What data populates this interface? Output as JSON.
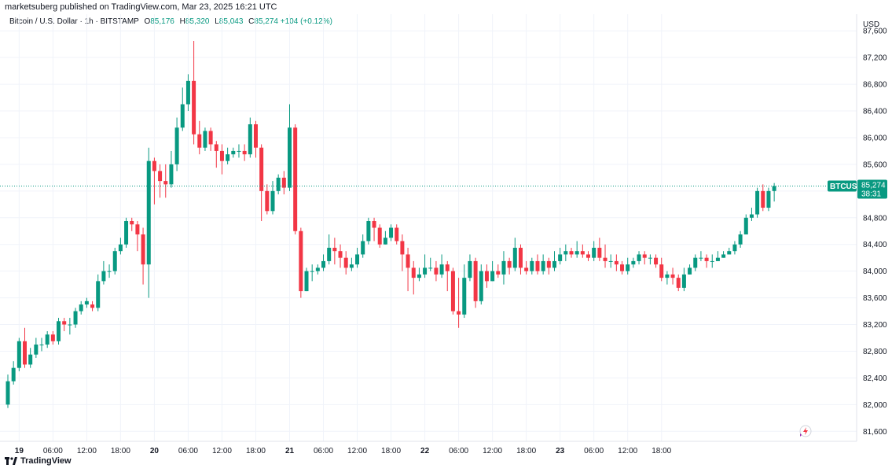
{
  "header": {
    "credit": "marketsuberg published on TradingView.com, Mar 23, 2025 16:21 UTC"
  },
  "legend": {
    "symbol": "Bitcoin / U.S. Dollar · 1h · BITSTAMP",
    "o_label": "O",
    "o_value": "85,176",
    "h_label": "H",
    "h_value": "85,320",
    "l_label": "L",
    "l_value": "85,043",
    "c_label": "C",
    "c_value": "85,274",
    "change": "+104 (+0.12%)"
  },
  "currency": "USD",
  "price_tag": {
    "ticker": "BTCUSD",
    "price": "85,274",
    "countdown": "38:31"
  },
  "footer": {
    "brand": "TradingView"
  },
  "colors": {
    "up": "#089981",
    "down": "#f23645",
    "grid": "#f0f3fa",
    "last_line": "#089981"
  },
  "chart_data": {
    "type": "candlestick",
    "y_ticks": [
      "81,600",
      "82,000",
      "82,400",
      "82,800",
      "83,200",
      "83,600",
      "84,000",
      "84,400",
      "84,800",
      "85,200",
      "85,600",
      "86,000",
      "86,400",
      "86,800",
      "87,200",
      "87,600"
    ],
    "y_tick_values": [
      81600,
      82000,
      82400,
      82800,
      83200,
      83600,
      84000,
      84400,
      84800,
      85200,
      85600,
      86000,
      86400,
      86800,
      87200,
      87600
    ],
    "ylim": [
      81450,
      87850
    ],
    "x_ticks": [
      "19",
      "06:00",
      "12:00",
      "18:00",
      "20",
      "06:00",
      "12:00",
      "18:00",
      "21",
      "06:00",
      "12:00",
      "18:00",
      "22",
      "06:00",
      "12:00",
      "18:00",
      "23",
      "06:00",
      "12:00",
      "18:00"
    ],
    "x_tick_hours": [
      2,
      8,
      14,
      20,
      26,
      32,
      38,
      44,
      50,
      56,
      62,
      68,
      74,
      80,
      86,
      92,
      98,
      104,
      110,
      116
    ],
    "x_tick_bold": [
      true,
      false,
      false,
      false,
      true,
      false,
      false,
      false,
      true,
      false,
      false,
      false,
      true,
      false,
      false,
      false,
      true,
      false,
      false,
      false
    ],
    "last_price": 85274,
    "candles": [
      [
        82000,
        82350,
        81950,
        82450
      ],
      [
        82350,
        82550,
        82300,
        82650
      ],
      [
        82550,
        82950,
        82500,
        83000
      ],
      [
        82950,
        82600,
        82550,
        83150
      ],
      [
        82600,
        82750,
        82550,
        82850
      ],
      [
        82750,
        82900,
        82700,
        83000
      ],
      [
        82900,
        82900,
        82800,
        83000
      ],
      [
        82900,
        83050,
        82850,
        83100
      ],
      [
        83050,
        82950,
        82900,
        83100
      ],
      [
        82950,
        83250,
        82900,
        83300
      ],
      [
        83250,
        83200,
        83100,
        83300
      ],
      [
        83200,
        83200,
        83050,
        83300
      ],
      [
        83200,
        83400,
        83150,
        83450
      ],
      [
        83400,
        83500,
        83350,
        83550
      ],
      [
        83500,
        83550,
        83450,
        83600
      ],
      [
        83500,
        83450,
        83400,
        83550
      ],
      [
        83450,
        83850,
        83400,
        83950
      ],
      [
        83850,
        84000,
        83800,
        84150
      ],
      [
        84000,
        84000,
        83900,
        84100
      ],
      [
        84000,
        84300,
        83950,
        84350
      ],
      [
        84300,
        84400,
        84250,
        84500
      ],
      [
        84400,
        84750,
        84350,
        84800
      ],
      [
        84750,
        84700,
        84600,
        84800
      ],
      [
        84700,
        84550,
        84300,
        84750
      ],
      [
        84550,
        84100,
        83800,
        84650
      ],
      [
        84100,
        85650,
        83600,
        85850
      ],
      [
        85650,
        85500,
        85000,
        85700
      ],
      [
        85500,
        85350,
        85100,
        85600
      ],
      [
        85350,
        85300,
        85100,
        85600
      ],
      [
        85300,
        85600,
        85250,
        85800
      ],
      [
        85600,
        86150,
        85500,
        86300
      ],
      [
        86150,
        86500,
        86100,
        86750
      ],
      [
        86500,
        86850,
        86400,
        86950
      ],
      [
        86850,
        86050,
        85900,
        87450
      ],
      [
        86050,
        85850,
        85750,
        86250
      ],
      [
        85850,
        86100,
        85800,
        86150
      ],
      [
        86100,
        85900,
        85800,
        86150
      ],
      [
        85900,
        85800,
        85550,
        85950
      ],
      [
        85800,
        85650,
        85450,
        85900
      ],
      [
        85650,
        85750,
        85600,
        85850
      ],
      [
        85750,
        85800,
        85700,
        85850
      ],
      [
        85800,
        85800,
        85700,
        85900
      ],
      [
        85800,
        85750,
        85650,
        85900
      ],
      [
        85750,
        86200,
        85700,
        86300
      ],
      [
        86200,
        85850,
        85700,
        86250
      ],
      [
        85850,
        85200,
        84750,
        85900
      ],
      [
        85200,
        84900,
        84850,
        85300
      ],
      [
        84900,
        85200,
        84850,
        85350
      ],
      [
        85200,
        85400,
        85150,
        85450
      ],
      [
        85400,
        85250,
        85150,
        85500
      ],
      [
        85250,
        86150,
        85200,
        86500
      ],
      [
        86150,
        84600,
        84550,
        86200
      ],
      [
        84600,
        83700,
        83600,
        84650
      ],
      [
        83700,
        84000,
        83700,
        84050
      ],
      [
        84000,
        84000,
        83850,
        84100
      ],
      [
        84000,
        84050,
        83950,
        84100
      ],
      [
        84050,
        84150,
        84000,
        84250
      ],
      [
        84150,
        84350,
        84100,
        84550
      ],
      [
        84350,
        84300,
        84100,
        84500
      ],
      [
        84300,
        84200,
        84050,
        84400
      ],
      [
        84200,
        84050,
        83950,
        84300
      ],
      [
        84050,
        84100,
        84000,
        84200
      ],
      [
        84100,
        84250,
        84050,
        84350
      ],
      [
        84250,
        84450,
        84200,
        84550
      ],
      [
        84450,
        84750,
        84400,
        84800
      ],
      [
        84750,
        84650,
        84450,
        84800
      ],
      [
        84650,
        84400,
        84350,
        84700
      ],
      [
        84400,
        84500,
        84400,
        84600
      ],
      [
        84500,
        84650,
        84450,
        84700
      ],
      [
        84650,
        84450,
        84400,
        84700
      ],
      [
        84450,
        84250,
        84000,
        84550
      ],
      [
        84250,
        84050,
        83700,
        84350
      ],
      [
        84050,
        83900,
        83650,
        84150
      ],
      [
        83900,
        83950,
        83850,
        84050
      ],
      [
        83950,
        84050,
        83900,
        84250
      ],
      [
        84050,
        84050,
        84000,
        84200
      ],
      [
        84050,
        83950,
        83850,
        84150
      ],
      [
        83950,
        84100,
        83900,
        84250
      ],
      [
        84100,
        84000,
        83700,
        84150
      ],
      [
        84000,
        83400,
        83350,
        84050
      ],
      [
        83400,
        83350,
        83150,
        83900
      ],
      [
        83350,
        83900,
        83300,
        84100
      ],
      [
        83900,
        84150,
        83850,
        84250
      ],
      [
        84150,
        83550,
        83450,
        84200
      ],
      [
        83550,
        84000,
        83500,
        84100
      ],
      [
        84000,
        83850,
        83750,
        84100
      ],
      [
        83850,
        84000,
        83850,
        84150
      ],
      [
        84000,
        83950,
        83900,
        84100
      ],
      [
        83950,
        84150,
        83800,
        84300
      ],
      [
        84150,
        84050,
        83950,
        84200
      ],
      [
        84050,
        84350,
        84000,
        84500
      ],
      [
        84350,
        84050,
        83950,
        84400
      ],
      [
        84050,
        84000,
        83950,
        84150
      ],
      [
        84000,
        84150,
        83950,
        84200
      ],
      [
        84150,
        84000,
        83950,
        84250
      ],
      [
        84000,
        84150,
        83950,
        84250
      ],
      [
        84150,
        84050,
        83950,
        84200
      ],
      [
        84050,
        84150,
        84000,
        84300
      ],
      [
        84150,
        84250,
        84100,
        84350
      ],
      [
        84250,
        84300,
        84150,
        84400
      ],
      [
        84300,
        84250,
        84200,
        84350
      ],
      [
        84250,
        84300,
        84200,
        84450
      ],
      [
        84300,
        84250,
        84200,
        84400
      ],
      [
        84250,
        84200,
        84150,
        84300
      ],
      [
        84200,
        84350,
        84150,
        84450
      ],
      [
        84350,
        84200,
        84150,
        84500
      ],
      [
        84200,
        84150,
        84050,
        84400
      ],
      [
        84150,
        84150,
        84050,
        84250
      ],
      [
        84150,
        84100,
        84000,
        84250
      ],
      [
        84100,
        84000,
        83950,
        84150
      ],
      [
        84000,
        84100,
        83950,
        84200
      ],
      [
        84100,
        84150,
        84050,
        84200
      ],
      [
        84150,
        84250,
        84100,
        84300
      ],
      [
        84250,
        84200,
        84100,
        84300
      ],
      [
        84200,
        84200,
        84100,
        84250
      ],
      [
        84200,
        84100,
        84050,
        84250
      ],
      [
        84100,
        83900,
        83850,
        84200
      ],
      [
        83900,
        83950,
        83800,
        84000
      ],
      [
        83950,
        83900,
        83800,
        84050
      ],
      [
        83900,
        83750,
        83700,
        83950
      ],
      [
        83750,
        83950,
        83700,
        84050
      ],
      [
        83950,
        84050,
        83950,
        84100
      ],
      [
        84050,
        84200,
        84000,
        84250
      ],
      [
        84200,
        84200,
        84150,
        84300
      ],
      [
        84200,
        84150,
        84050,
        84250
      ],
      [
        84150,
        84150,
        84050,
        84250
      ],
      [
        84150,
        84200,
        84150,
        84300
      ],
      [
        84200,
        84250,
        84200,
        84300
      ],
      [
        84250,
        84300,
        84250,
        84350
      ],
      [
        84300,
        84400,
        84250,
        84450
      ],
      [
        84400,
        84550,
        84350,
        84600
      ],
      [
        84550,
        84800,
        84550,
        84850
      ],
      [
        84800,
        84850,
        84750,
        84950
      ],
      [
        84850,
        85200,
        84800,
        85250
      ],
      [
        85200,
        84950,
        84900,
        85300
      ],
      [
        84950,
        85200,
        84900,
        85250
      ],
      [
        85200,
        85274,
        85043,
        85320
      ]
    ]
  }
}
